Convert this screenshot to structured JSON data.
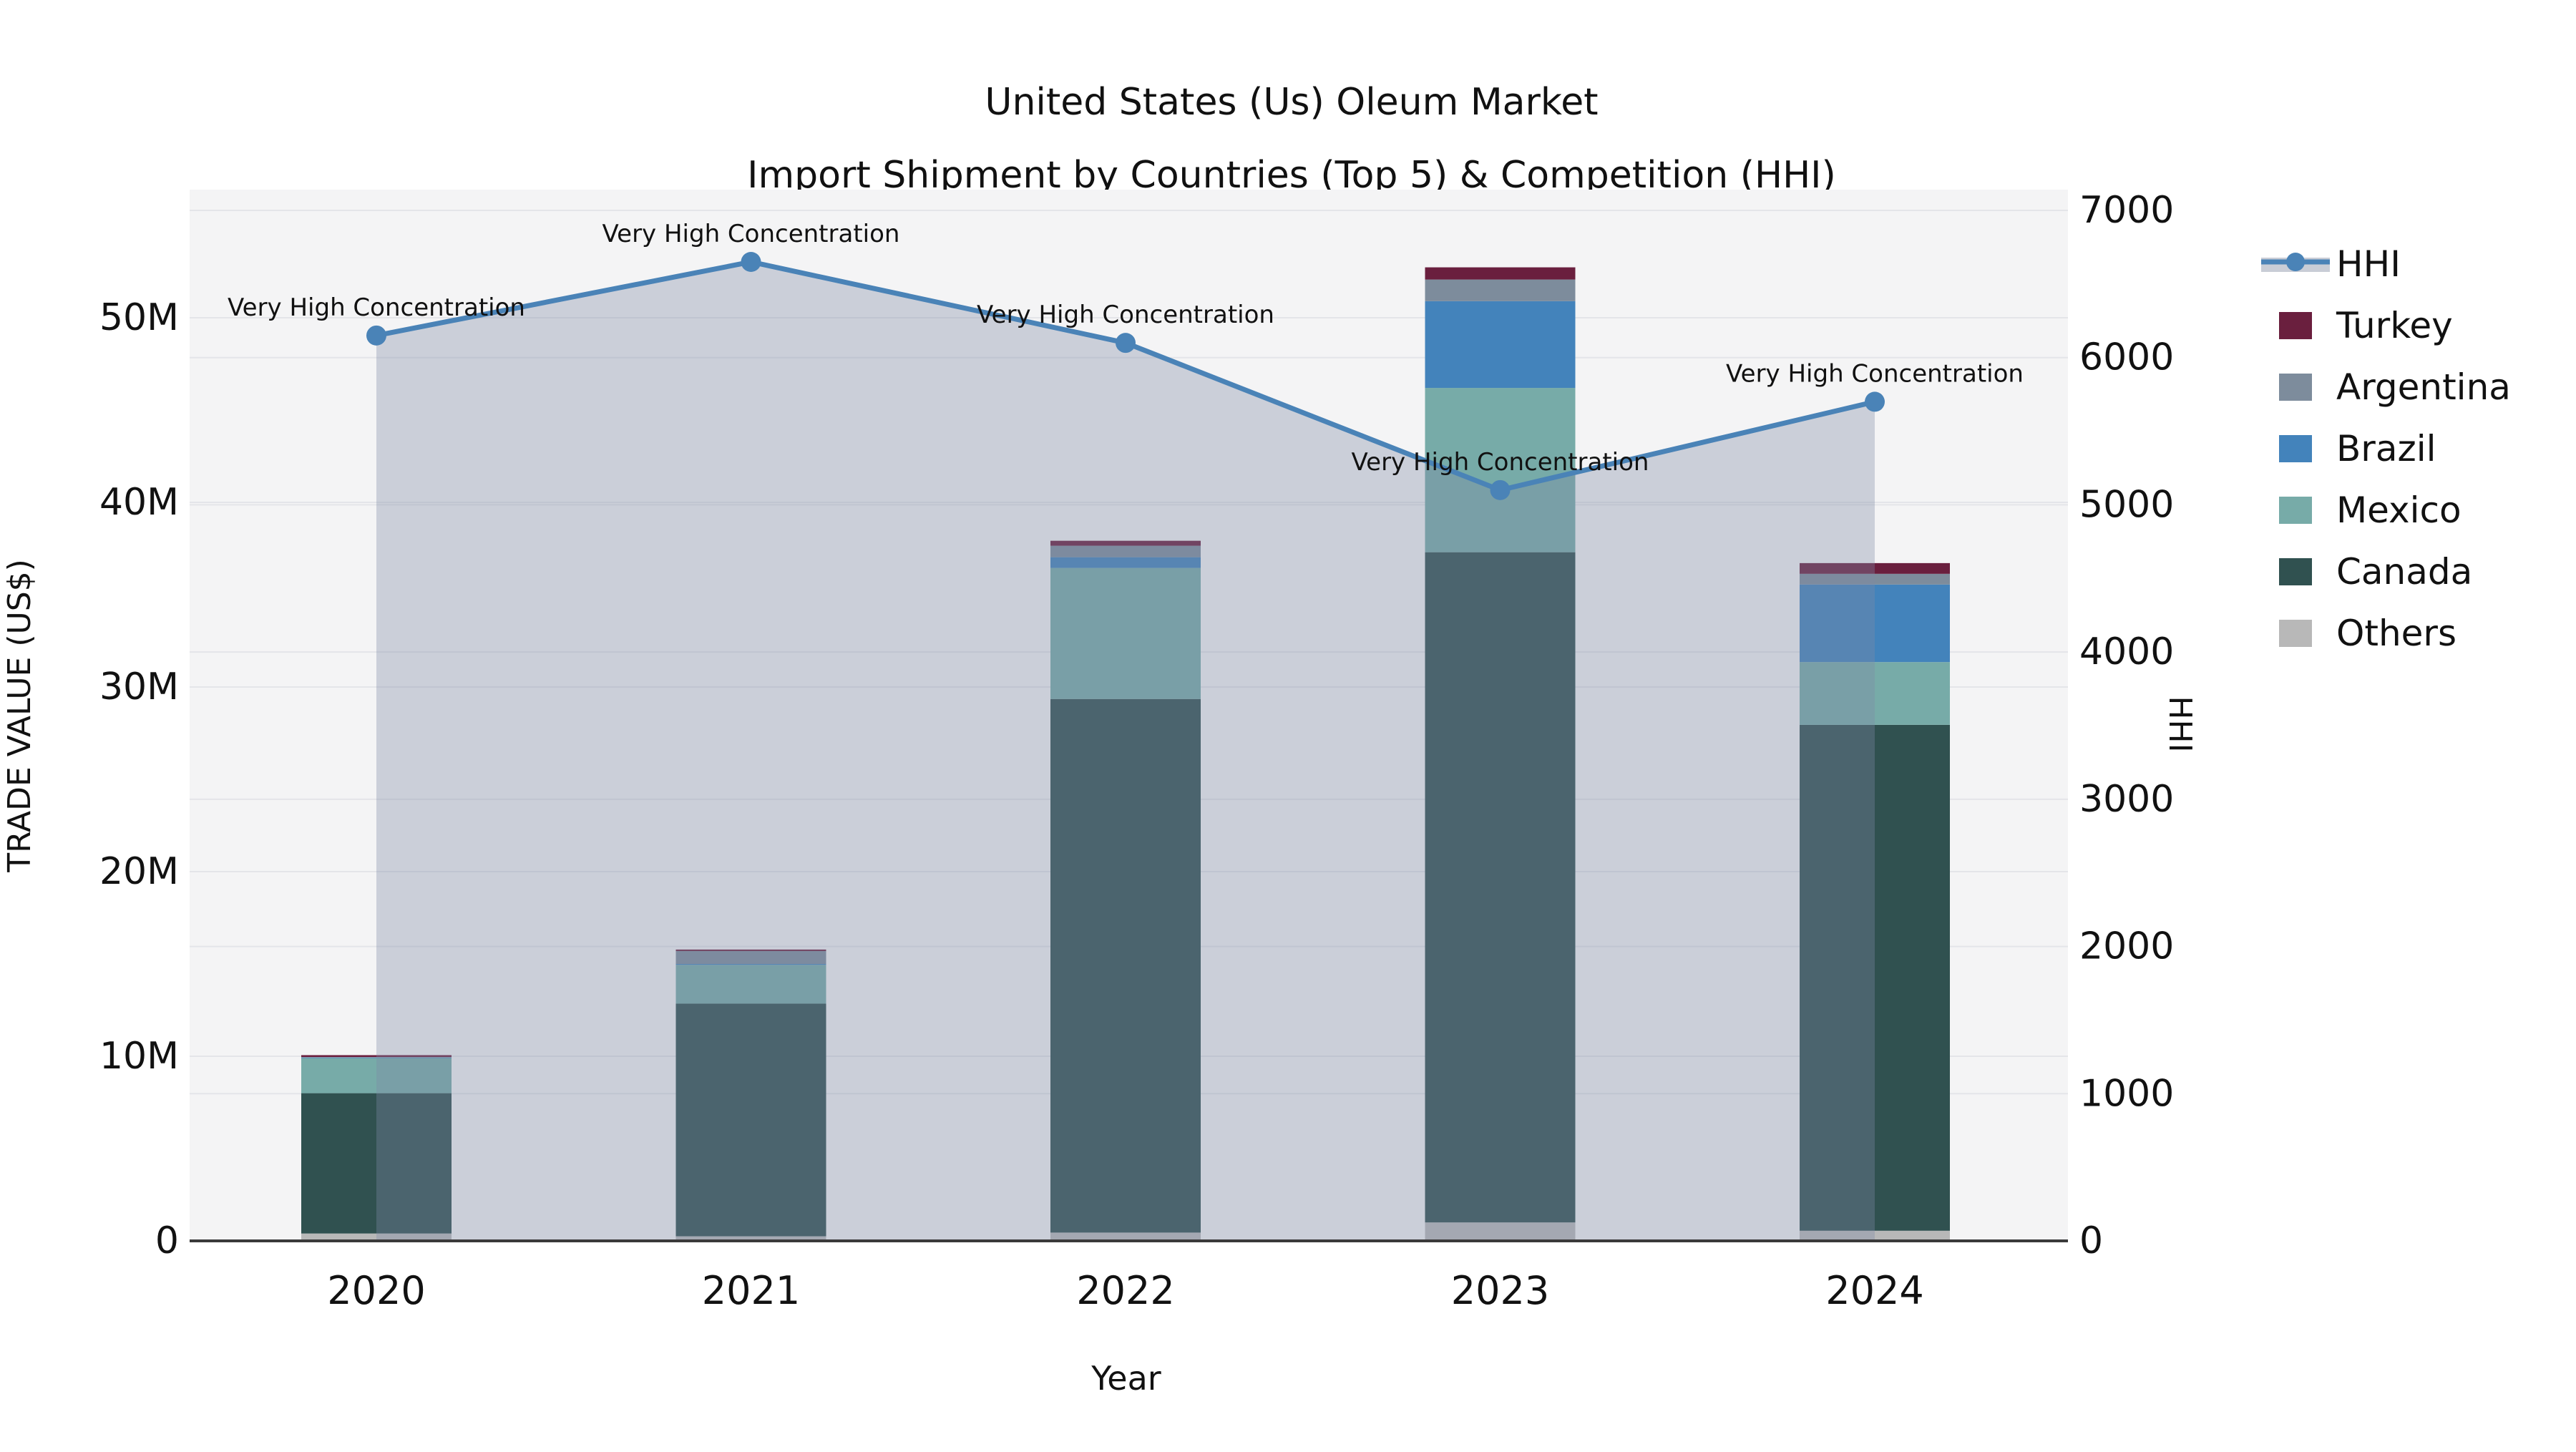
{
  "title": {
    "line1": "United States (Us) Oleum Market",
    "line2": "Import Shipment by Countries (Top 5) & Competition (HHI)"
  },
  "axes": {
    "x_label": "Year",
    "y_left_label": "TRADE VALUE (US$)",
    "y_right_label": "HHI"
  },
  "annotation_text": "Very High Concentration",
  "legend": {
    "items": [
      {
        "label": "HHI",
        "color": "#4a83b7",
        "type": "line"
      },
      {
        "label": "Turkey",
        "color": "#6a1f3e",
        "type": "swatch"
      },
      {
        "label": "Argentina",
        "color": "#7d8c9c",
        "type": "swatch"
      },
      {
        "label": "Brazil",
        "color": "#4383bb",
        "type": "swatch"
      },
      {
        "label": "Mexico",
        "color": "#77aba8",
        "type": "swatch"
      },
      {
        "label": "Canada",
        "color": "#305150",
        "type": "swatch"
      },
      {
        "label": "Others",
        "color": "#b8b8b8",
        "type": "swatch"
      }
    ]
  },
  "colors": {
    "plot_bg": "#f4f4f5",
    "gridline": "#e4e5e9",
    "axis_line": "#3a3a3a",
    "hhi_line": "#4a83b7",
    "hhi_area_fill": "rgba(127,138,165,0.35)"
  },
  "chart_data": {
    "type": "combo_stacked_bar_plus_line",
    "categories": [
      "2020",
      "2021",
      "2022",
      "2023",
      "2024"
    ],
    "bar_value_unit": "US$ millions",
    "stack_order_bottom_to_top": [
      "Others",
      "Canada",
      "Mexico",
      "Brazil",
      "Argentina",
      "Turkey"
    ],
    "series": [
      {
        "name": "Turkey",
        "color": "#6a1f3e",
        "values": [
          0.1,
          0.08,
          0.27,
          0.66,
          0.58
        ]
      },
      {
        "name": "Argentina",
        "color": "#7d8c9c",
        "values": [
          0.03,
          0.7,
          0.62,
          1.17,
          0.58
        ]
      },
      {
        "name": "Brazil",
        "color": "#4383bb",
        "values": [
          0.03,
          0.05,
          0.58,
          4.7,
          4.2
        ]
      },
      {
        "name": "Mexico",
        "color": "#77aba8",
        "values": [
          1.9,
          2.1,
          7.1,
          8.9,
          3.4
        ]
      },
      {
        "name": "Canada",
        "color": "#305150",
        "values": [
          7.6,
          12.6,
          28.9,
          36.3,
          27.4
        ]
      },
      {
        "name": "Others",
        "color": "#b8b8b8",
        "values": [
          0.4,
          0.25,
          0.45,
          1.0,
          0.55
        ]
      }
    ],
    "bar_totals_million": [
      10.1,
      15.8,
      37.9,
      52.7,
      36.7
    ],
    "line_series": {
      "name": "HHI",
      "color": "#4a83b7",
      "values": [
        6150,
        6650,
        6100,
        5100,
        5700
      ],
      "annotations": [
        "Very High Concentration",
        "Very High Concentration",
        "Very High Concentration",
        "Very High Concentration",
        "Very High Concentration"
      ]
    },
    "y_left_axis": {
      "label": "TRADE VALUE (US$)",
      "ticks": [
        "0",
        "10M",
        "20M",
        "30M",
        "40M",
        "50M"
      ],
      "tick_values": [
        0,
        10,
        20,
        30,
        40,
        50
      ],
      "range": [
        0,
        55
      ]
    },
    "y_right_axis": {
      "label": "HHI",
      "ticks": [
        "0",
        "1000",
        "2000",
        "3000",
        "4000",
        "5000",
        "6000",
        "7000"
      ],
      "tick_values": [
        0,
        1000,
        2000,
        3000,
        4000,
        5000,
        6000,
        7000
      ],
      "range": [
        0,
        7000
      ]
    },
    "x_axis": {
      "label": "Year"
    },
    "grid": true,
    "legend_position": "right"
  }
}
